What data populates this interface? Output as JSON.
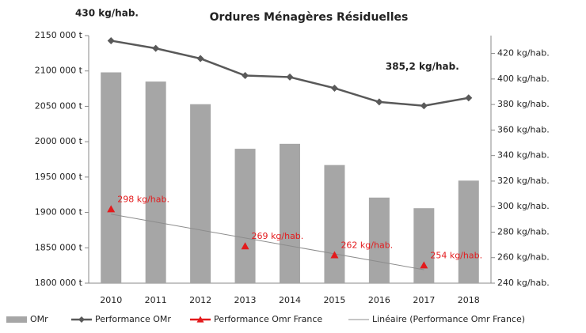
{
  "chart_data": {
    "type": "bar-line",
    "title": "Ordures Ménagères Résiduelles",
    "categories": [
      "2010",
      "2011",
      "2012",
      "2013",
      "2014",
      "2015",
      "2016",
      "2017",
      "2018"
    ],
    "series": [
      {
        "name": "OMr",
        "type": "bar",
        "color": "#a6a6a6",
        "values": [
          2098000,
          2085000,
          2053000,
          1990000,
          1997000,
          1967000,
          1921000,
          1906000,
          1945000
        ]
      },
      {
        "name": "Performance OMr",
        "type": "line",
        "axis": "y2",
        "color": "#595959",
        "values": [
          430,
          424,
          416,
          402.7,
          401.5,
          392.8,
          382,
          379,
          385.2
        ],
        "value_labels": [
          "430 kg/hab.",
          null,
          null,
          null,
          null,
          null,
          null,
          null,
          "385,2 kg/hab."
        ]
      },
      {
        "name": "Performance Omr France",
        "type": "marker",
        "axis": "y2",
        "color": "#e31a1c",
        "values": [
          298,
          null,
          null,
          269,
          null,
          262,
          null,
          254,
          null
        ],
        "value_labels": [
          "298 kg/hab.",
          null,
          null,
          "269 kg/hab.",
          null,
          "262 kg/hab.",
          null,
          "254 kg/hab.",
          null
        ]
      },
      {
        "name": "Linéaire (Performance Omr France)",
        "type": "trendline",
        "axis": "y2",
        "color": "#8c8c8c",
        "trendline": "linear"
      }
    ],
    "ylim": [
      1800000,
      2150000
    ],
    "yticks": [
      {
        "value": 1800000,
        "label": "1800 000 t"
      },
      {
        "value": 1850000,
        "label": "1850 000 t"
      },
      {
        "value": 1900000,
        "label": "1900 000 t"
      },
      {
        "value": 1950000,
        "label": "1950 000 t"
      },
      {
        "value": 2000000,
        "label": "2000 000 t"
      },
      {
        "value": 2050000,
        "label": "2050 000 t"
      },
      {
        "value": 2100000,
        "label": "2100 000 t"
      },
      {
        "value": 2150000,
        "label": "2150 000 t"
      }
    ],
    "y2lim": [
      240,
      434
    ],
    "y2ticks": [
      {
        "value": 240,
        "label": "240 kg/hab."
      },
      {
        "value": 260,
        "label": "260 kg/hab."
      },
      {
        "value": 280,
        "label": "280 kg/hab."
      },
      {
        "value": 300,
        "label": "300 kg/hab."
      },
      {
        "value": 320,
        "label": "320 kg/hab."
      },
      {
        "value": 340,
        "label": "340 kg/hab."
      },
      {
        "value": 360,
        "label": "360 kg/hab."
      },
      {
        "value": 380,
        "label": "380 kg/hab."
      },
      {
        "value": 400,
        "label": "400 kg/hab."
      },
      {
        "value": 420,
        "label": "420 kg/hab."
      }
    ],
    "grid": false,
    "legend": "bottom"
  }
}
